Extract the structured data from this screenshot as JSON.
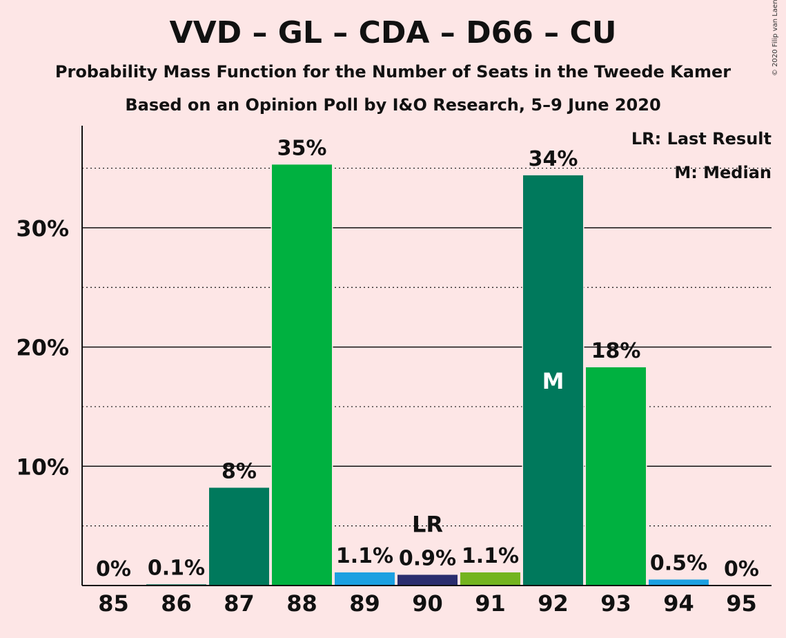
{
  "title": "VVD – GL – CDA – D66 – CU",
  "subtitle": "Probability Mass Function for the Number of Seats in the Tweede Kamer",
  "subtitle2": "Based on an Opinion Poll by I&O Research, 5–9 June 2020",
  "copyright": "© 2020 Filip van Laenen",
  "legend": {
    "last_result": "LR: Last Result",
    "median": "M: Median"
  },
  "chart_data": {
    "type": "bar",
    "categories": [
      "85",
      "86",
      "87",
      "88",
      "89",
      "90",
      "91",
      "92",
      "93",
      "94",
      "95"
    ],
    "values": [
      0,
      0.1,
      8.2,
      35.3,
      1.1,
      0.9,
      1.1,
      34.4,
      18.3,
      0.5,
      0
    ],
    "labels": [
      "0%",
      "0.1%",
      "8%",
      "35%",
      "1.1%",
      "0.9%",
      "1.1%",
      "34%",
      "18%",
      "0.5%",
      "0%"
    ],
    "colors": [
      "#00795c",
      "#00795c",
      "#00795c",
      "#00b140",
      "#1ba0e1",
      "#2a2d6e",
      "#73b41e",
      "#00795c",
      "#00b140",
      "#1ba0e1",
      "#1ba0e1"
    ],
    "y_ticks": [
      10,
      20,
      30
    ],
    "y_tick_labels": [
      "10%",
      "20%",
      "30%"
    ],
    "ylim": [
      0,
      38.5
    ],
    "last_result_category": "90",
    "last_result_label": "LR",
    "median_category": "92",
    "median_label": "M",
    "grid": true
  }
}
